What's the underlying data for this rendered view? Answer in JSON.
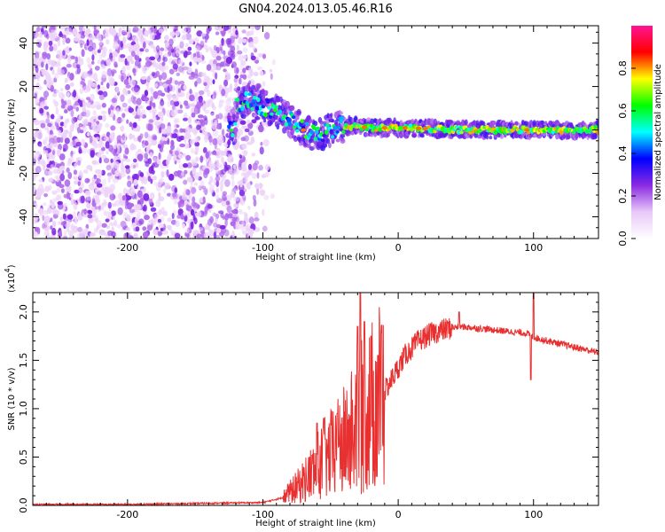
{
  "title": "GN04.2024.013.05.46.R16",
  "chart_data": [
    {
      "type": "heatmap",
      "xlabel": "Height of straight line (km)",
      "ylabel": "Frequency (Hz)",
      "xlim": [
        -270,
        148
      ],
      "ylim": [
        -50,
        48
      ],
      "x_ticks": [
        -200,
        -100,
        0,
        100
      ],
      "y_ticks": [
        -40,
        -20,
        0,
        20,
        40
      ],
      "grid": false,
      "colorbar": {
        "label": "Normalized spectral amplitude",
        "range": [
          0.0,
          1.0
        ],
        "ticks": [
          0.0,
          0.2,
          0.4,
          0.6,
          0.8
        ],
        "tick_labels": [
          "0.0",
          "0.2",
          "0.4",
          "0.6",
          "0.8"
        ],
        "colormap": [
          "#ffffff",
          "#e8c8f8",
          "#8a2be2",
          "#0000ff",
          "#00ffff",
          "#00ff00",
          "#ffff00",
          "#ff0000",
          "#ff1493"
        ]
      },
      "features": [
        {
          "name": "broadband noise",
          "x_range": [
            -270,
            -100
          ],
          "y_range": [
            -50,
            48
          ],
          "level": 0.15
        },
        {
          "name": "signal band",
          "points": [
            [
              -120,
              12
            ],
            [
              -110,
              14
            ],
            [
              -100,
              11
            ],
            [
              -90,
              9
            ],
            [
              -80,
              4
            ],
            [
              -70,
              0
            ],
            [
              -60,
              -3
            ],
            [
              -50,
              0
            ],
            [
              -40,
              2
            ],
            [
              -20,
              1
            ],
            [
              0,
              1
            ],
            [
              50,
              0
            ],
            [
              100,
              0
            ],
            [
              148,
              0
            ]
          ],
          "level": 0.75
        }
      ]
    },
    {
      "type": "line",
      "xlabel": "Height of straight line (km)",
      "ylabel": "SNR (10 * v/v)",
      "y_multiplier_label": "(x10",
      "y_multiplier_exp": "4",
      "y_multiplier_close": ")",
      "xlim": [
        -270,
        148
      ],
      "ylim": [
        0,
        2.2
      ],
      "x_ticks": [
        -200,
        -100,
        0,
        100
      ],
      "y_ticks": [
        0.0,
        0.5,
        1.0,
        1.5,
        2.0
      ],
      "y_tick_labels": [
        "0.0",
        "0.5",
        "1.0",
        "1.5",
        "2.0"
      ],
      "grid": false,
      "series_color": "#e83030",
      "envelope": {
        "x": [
          -270,
          -200,
          -150,
          -100,
          -85,
          -75,
          -65,
          -55,
          -45,
          -35,
          -25,
          -15,
          -5,
          5,
          15,
          25,
          35,
          45,
          60,
          80,
          95,
          100,
          105,
          120,
          135,
          148
        ],
        "y": [
          0.01,
          0.01,
          0.02,
          0.03,
          0.08,
          0.18,
          0.3,
          0.45,
          0.55,
          0.7,
          0.9,
          1.05,
          1.3,
          1.55,
          1.7,
          1.78,
          1.82,
          1.85,
          1.83,
          1.8,
          1.78,
          1.74,
          1.72,
          1.67,
          1.62,
          1.58
        ]
      },
      "spikes": [
        {
          "x": -60,
          "y": 0.85
        },
        {
          "x": -55,
          "y": 0.9
        },
        {
          "x": -45,
          "y": 0.95
        },
        {
          "x": -30,
          "y": 1.85
        },
        {
          "x": -28,
          "y": 2.2
        },
        {
          "x": -25,
          "y": 1.9
        },
        {
          "x": -20,
          "y": 1.75
        },
        {
          "x": -15,
          "y": 1.55
        },
        {
          "x": 45,
          "y": 2.0
        },
        {
          "x": 100,
          "y": 2.2
        },
        {
          "x": 98,
          "y": 1.3
        }
      ]
    }
  ]
}
